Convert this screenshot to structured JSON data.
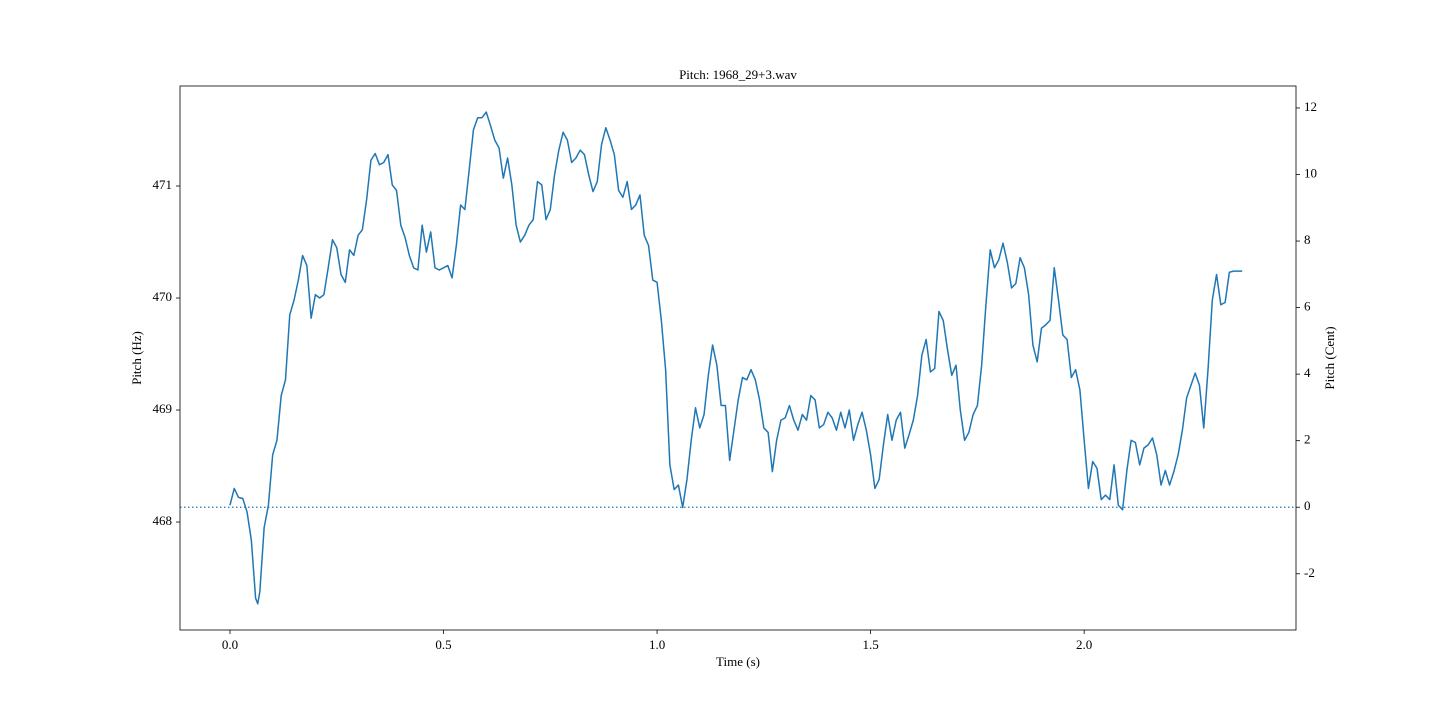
{
  "chart_data": {
    "type": "line",
    "title": "Pitch: 1968_29+3.wav",
    "xlabel": "Time (s)",
    "ylabel": "Pitch (Hz)",
    "y2label": "Pitch (Cent)",
    "color": "#1f77b4",
    "x": [
      0,
      0.01,
      0.02,
      0.03,
      0.04,
      0.05,
      0.06,
      0.065,
      0.07,
      0.08,
      0.09,
      0.1,
      0.11,
      0.12,
      0.13,
      0.14,
      0.15,
      0.16,
      0.17,
      0.18,
      0.19,
      0.2,
      0.21,
      0.22,
      0.23,
      0.24,
      0.25,
      0.26,
      0.27,
      0.28,
      0.29,
      0.3,
      0.31,
      0.32,
      0.33,
      0.34,
      0.35,
      0.36,
      0.37,
      0.38,
      0.39,
      0.4,
      0.41,
      0.42,
      0.43,
      0.44,
      0.45,
      0.46,
      0.47,
      0.48,
      0.49,
      0.5,
      0.51,
      0.52,
      0.53,
      0.54,
      0.55,
      0.56,
      0.57,
      0.58,
      0.59,
      0.6,
      0.61,
      0.62,
      0.63,
      0.64,
      0.65,
      0.66,
      0.67,
      0.68,
      0.69,
      0.7,
      0.71,
      0.72,
      0.73,
      0.74,
      0.75,
      0.76,
      0.77,
      0.78,
      0.79,
      0.8,
      0.81,
      0.82,
      0.83,
      0.84,
      0.85,
      0.86,
      0.87,
      0.88,
      0.89,
      0.9,
      0.91,
      0.92,
      0.93,
      0.94,
      0.95,
      0.96,
      0.97,
      0.98,
      0.99,
      1,
      1.01,
      1.02,
      1.03,
      1.04,
      1.05,
      1.06,
      1.07,
      1.08,
      1.09,
      1.1,
      1.11,
      1.12,
      1.13,
      1.14,
      1.15,
      1.16,
      1.17,
      1.18,
      1.19,
      1.2,
      1.21,
      1.22,
      1.23,
      1.24,
      1.25,
      1.26,
      1.27,
      1.28,
      1.29,
      1.3,
      1.31,
      1.32,
      1.33,
      1.34,
      1.35,
      1.36,
      1.37,
      1.38,
      1.39,
      1.4,
      1.41,
      1.42,
      1.43,
      1.44,
      1.45,
      1.46,
      1.47,
      1.48,
      1.49,
      1.5,
      1.51,
      1.52,
      1.53,
      1.54,
      1.55,
      1.56,
      1.57,
      1.58,
      1.59,
      1.6,
      1.61,
      1.62,
      1.63,
      1.64,
      1.65,
      1.66,
      1.67,
      1.68,
      1.69,
      1.7,
      1.71,
      1.72,
      1.73,
      1.74,
      1.75,
      1.76,
      1.77,
      1.78,
      1.79,
      1.8,
      1.81,
      1.82,
      1.83,
      1.84,
      1.85,
      1.86,
      1.87,
      1.88,
      1.89,
      1.9,
      1.91,
      1.92,
      1.93,
      1.94,
      1.95,
      1.96,
      1.97,
      1.98,
      1.99,
      2,
      2.01,
      2.02,
      2.03,
      2.04,
      2.05,
      2.06,
      2.07,
      2.08,
      2.09,
      2.1,
      2.11,
      2.12,
      2.13,
      2.14,
      2.15,
      2.16,
      2.17,
      2.18,
      2.19,
      2.2,
      2.21,
      2.22,
      2.23,
      2.24,
      2.25,
      2.26,
      2.27,
      2.28,
      2.29,
      2.3,
      2.31,
      2.32,
      2.33,
      2.34,
      2.35,
      2.37
    ],
    "values": [
      468.15,
      468.3,
      468.22,
      468.21,
      468.09,
      467.84,
      467.32,
      467.27,
      467.38,
      467.95,
      468.15,
      468.6,
      468.73,
      469.13,
      469.27,
      469.85,
      469.98,
      470.16,
      470.38,
      470.29,
      469.82,
      470.03,
      470,
      470.03,
      470.27,
      470.52,
      470.45,
      470.21,
      470.14,
      470.43,
      470.38,
      470.56,
      470.61,
      470.88,
      471.23,
      471.29,
      471.19,
      471.21,
      471.28,
      471.01,
      470.96,
      470.65,
      470.54,
      470.38,
      470.27,
      470.25,
      470.65,
      470.41,
      470.59,
      470.27,
      470.25,
      470.27,
      470.29,
      470.18,
      470.47,
      470.83,
      470.79,
      471.14,
      471.5,
      471.61,
      471.61,
      471.66,
      471.54,
      471.41,
      471.34,
      471.07,
      471.25,
      471.01,
      470.65,
      470.5,
      470.56,
      470.65,
      470.7,
      471.04,
      471.01,
      470.7,
      470.79,
      471.1,
      471.32,
      471.48,
      471.41,
      471.21,
      471.25,
      471.32,
      471.28,
      471.1,
      470.95,
      471.04,
      471.37,
      471.52,
      471.41,
      471.28,
      470.96,
      470.9,
      471.04,
      470.79,
      470.83,
      470.92,
      470.56,
      470.47,
      470.16,
      470.14,
      469.8,
      469.36,
      468.51,
      468.29,
      468.33,
      468.13,
      468.38,
      468.73,
      469.02,
      468.84,
      468.96,
      469.31,
      469.58,
      469.4,
      469.04,
      469.04,
      468.55,
      468.82,
      469.09,
      469.29,
      469.27,
      469.36,
      469.27,
      469.09,
      468.84,
      468.8,
      468.45,
      468.73,
      468.91,
      468.93,
      469.04,
      468.91,
      468.82,
      468.96,
      468.91,
      469.13,
      469.09,
      468.84,
      468.87,
      468.98,
      468.93,
      468.82,
      468.98,
      468.84,
      469,
      468.73,
      468.87,
      468.98,
      468.82,
      468.6,
      468.3,
      468.38,
      468.69,
      468.96,
      468.73,
      468.91,
      468.98,
      468.66,
      468.78,
      468.91,
      469.13,
      469.49,
      469.63,
      469.34,
      469.37,
      469.88,
      469.8,
      469.54,
      469.31,
      469.4,
      469,
      468.73,
      468.8,
      468.96,
      469.04,
      469.4,
      469.94,
      470.43,
      470.27,
      470.34,
      470.49,
      470.32,
      470.09,
      470.13,
      470.36,
      470.27,
      470.03,
      469.58,
      469.43,
      469.73,
      469.76,
      469.8,
      470.27,
      469.98,
      469.67,
      469.63,
      469.29,
      469.36,
      469.18,
      468.73,
      468.3,
      468.54,
      468.48,
      468.2,
      468.24,
      468.2,
      468.51,
      468.15,
      468.11,
      468.46,
      468.73,
      468.71,
      468.51,
      468.66,
      468.69,
      468.75,
      468.6,
      468.33,
      468.46,
      468.33,
      468.45,
      468.6,
      468.82,
      469.11,
      469.22,
      469.33,
      469.22,
      468.84,
      469.36,
      469.98,
      470.21,
      469.94,
      469.96,
      470.23,
      470.24,
      470.24
    ],
    "xlim": [
      -0.117,
      2.496
    ],
    "xticks": [
      {
        "value": 0,
        "label": "0.0"
      },
      0.5,
      {
        "value": 1,
        "label": "1.0"
      },
      1.5,
      {
        "value": 2,
        "label": "2.0"
      }
    ],
    "ylim": [
      467.036,
      471.893
    ],
    "yticks": [
      468,
      469,
      470,
      471
    ],
    "y2lim": [
      -3.69,
      12.66
    ],
    "y2ticks": [
      -2,
      0,
      2,
      4,
      6,
      8,
      10,
      12
    ],
    "hlines": [
      {
        "axis": "y2",
        "value": 0,
        "color": "#1f77b4",
        "style": "dotted"
      }
    ]
  }
}
